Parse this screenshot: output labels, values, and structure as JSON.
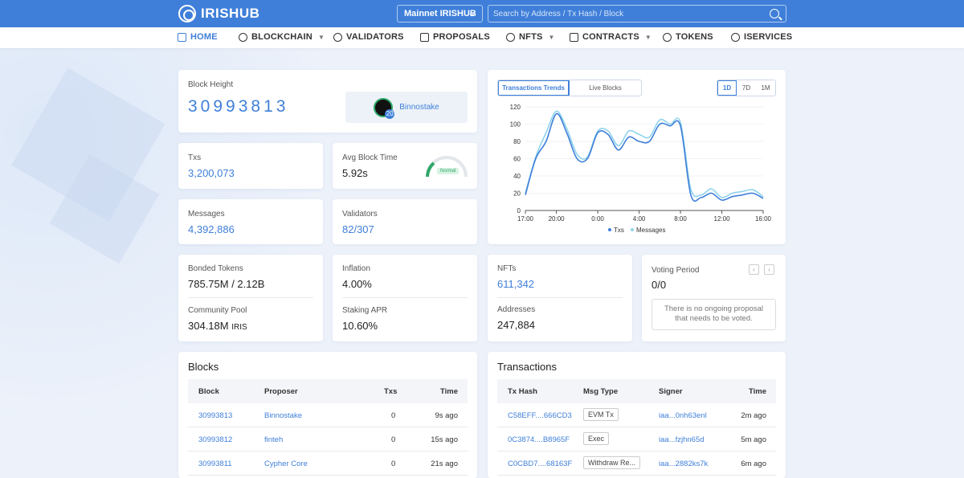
{
  "header": {
    "logo": "IRISHUB",
    "network": "Mainnet IRISHUB",
    "search_placeholder": "Search by Address / Tx Hash / Block"
  },
  "nav": [
    {
      "label": "HOME",
      "icon": "home-icon",
      "active": true,
      "dropdown": false
    },
    {
      "label": "BLOCKCHAIN",
      "icon": "cube-icon",
      "active": false,
      "dropdown": true
    },
    {
      "label": "VALIDATORS",
      "icon": "validators-icon",
      "active": false,
      "dropdown": false
    },
    {
      "label": "PROPOSALS",
      "icon": "proposals-icon",
      "active": false,
      "dropdown": false
    },
    {
      "label": "NFTS",
      "icon": "nft-icon",
      "active": false,
      "dropdown": true
    },
    {
      "label": "CONTRACTS",
      "icon": "contract-icon",
      "active": false,
      "dropdown": true
    },
    {
      "label": "TOKENS",
      "icon": "tokens-icon",
      "active": false,
      "dropdown": false
    },
    {
      "label": "ISERVICES",
      "icon": "iservices-icon",
      "active": false,
      "dropdown": false
    }
  ],
  "block_height": {
    "label": "Block Height",
    "value": "30993813",
    "proposer": "Binnostake",
    "proposer_badge": "20"
  },
  "stats": {
    "txs": {
      "label": "Txs",
      "value": "3,200,073"
    },
    "avg_block_time": {
      "label": "Avg Block Time",
      "value": "5.92s",
      "status": "Normal"
    },
    "messages": {
      "label": "Messages",
      "value": "4,392,886"
    },
    "validators": {
      "label": "Validators",
      "value": "82/307"
    },
    "bonded_tokens": {
      "label": "Bonded Tokens",
      "value": "785.75M / 2.12B"
    },
    "community_pool": {
      "label": "Community Pool",
      "value": "304.18M",
      "unit": "IRIS"
    },
    "inflation": {
      "label": "Inflation",
      "value": "4.00%"
    },
    "staking_apr": {
      "label": "Staking APR",
      "value": "10.60%"
    },
    "nfts": {
      "label": "NFTs",
      "value": "611,342"
    },
    "addresses": {
      "label": "Addresses",
      "value": "247,884"
    },
    "voting_period": {
      "label": "Voting Period",
      "value": "0/0",
      "empty_line1": "There is no ongoing proposal",
      "empty_line2": "that needs to be voted."
    }
  },
  "chart_tabs": [
    "Transactions Trends",
    "Live Blocks"
  ],
  "chart_ranges": [
    "1D",
    "7D",
    "1M"
  ],
  "chart_data": {
    "type": "line",
    "x": [
      "17:00",
      "18:00",
      "19:00",
      "20:00",
      "21:00",
      "22:00",
      "23:00",
      "0:00",
      "1:00",
      "2:00",
      "3:00",
      "4:00",
      "5:00",
      "6:00",
      "7:00",
      "8:00",
      "9:00",
      "10:00",
      "11:00",
      "12:00",
      "13:00",
      "14:00",
      "15:00",
      "16:00"
    ],
    "x_tick_labels": [
      "17:00",
      "20:00",
      "0:00",
      "4:00",
      "8:00",
      "12:00",
      "16:00"
    ],
    "y_ticks": [
      0,
      20,
      40,
      60,
      80,
      100,
      120
    ],
    "ylim": [
      0,
      120
    ],
    "series": [
      {
        "name": "Txs",
        "color": "#3f7fd9",
        "values": [
          18,
          60,
          80,
          112,
          90,
          60,
          60,
          90,
          88,
          70,
          85,
          80,
          80,
          100,
          98,
          98,
          18,
          15,
          20,
          12,
          16,
          18,
          20,
          14
        ]
      },
      {
        "name": "Messages",
        "color": "#8fd3ec",
        "values": [
          20,
          62,
          90,
          115,
          95,
          65,
          62,
          92,
          92,
          75,
          92,
          88,
          85,
          105,
          100,
          102,
          25,
          18,
          25,
          15,
          20,
          22,
          24,
          16
        ]
      }
    ],
    "legend": "bottom"
  },
  "blocks": {
    "title": "Blocks",
    "columns": [
      "Block",
      "Proposer",
      "Txs",
      "Time"
    ],
    "rows": [
      {
        "block": "30993813",
        "proposer": "Binnostake",
        "txs": "0",
        "time": "9s ago"
      },
      {
        "block": "30993812",
        "proposer": "finteh",
        "txs": "0",
        "time": "15s ago"
      },
      {
        "block": "30993811",
        "proposer": "Cypher Core",
        "txs": "0",
        "time": "21s ago"
      }
    ]
  },
  "transactions": {
    "title": "Transactions",
    "columns": [
      "Tx Hash",
      "Msg Type",
      "Signer",
      "Time"
    ],
    "rows": [
      {
        "hash": "C58EFF....666CD3",
        "type": "EVM Tx",
        "signer": "iaa...0nh63enl",
        "time": "2m ago"
      },
      {
        "hash": "0C3874....B8965F",
        "type": "Exec",
        "signer": "iaa...fzjhn65d",
        "time": "5m ago"
      },
      {
        "hash": "C0CBD7....68163F",
        "type": "Withdraw Re...",
        "signer": "iaa...2882ks7k",
        "time": "6m ago"
      }
    ]
  }
}
